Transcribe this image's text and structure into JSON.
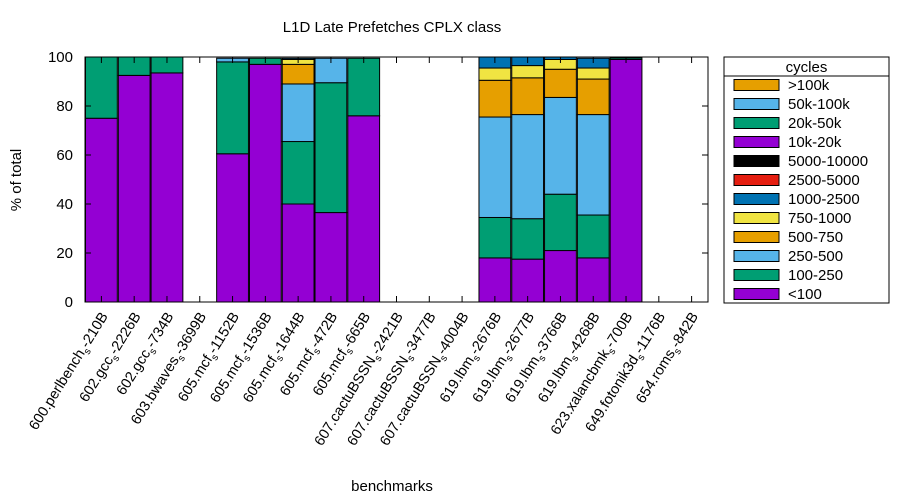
{
  "chart_data": {
    "type": "bar",
    "stacked": true,
    "title": "L1D Late Prefetches CPLX class",
    "xlabel": "benchmarks",
    "ylabel": "% of total",
    "ylim": [
      0,
      100
    ],
    "yticks": [
      0,
      20,
      40,
      60,
      80,
      100
    ],
    "grid": false,
    "legend": {
      "title": "cycles",
      "placement": "right"
    },
    "categories": [
      {
        "base": "600.perlbench",
        "sub": "s",
        "suffix": "-210B"
      },
      {
        "base": "602.gcc",
        "sub": "s",
        "suffix": "-2226B"
      },
      {
        "base": "602.gcc",
        "sub": "s",
        "suffix": "-734B"
      },
      {
        "base": "603.bwaves",
        "sub": "s",
        "suffix": "-3699B"
      },
      {
        "base": "605.mcf",
        "sub": "s",
        "suffix": "-1152B"
      },
      {
        "base": "605.mcf",
        "sub": "s",
        "suffix": "-1536B"
      },
      {
        "base": "605.mcf",
        "sub": "s",
        "suffix": "-1644B"
      },
      {
        "base": "605.mcf",
        "sub": "s",
        "suffix": "-472B"
      },
      {
        "base": "605.mcf",
        "sub": "s",
        "suffix": "-665B"
      },
      {
        "base": "607.cactuBSSN",
        "sub": "s",
        "suffix": "-2421B"
      },
      {
        "base": "607.cactuBSSN",
        "sub": "s",
        "suffix": "-3477B"
      },
      {
        "base": "607.cactuBSSN",
        "sub": "s",
        "suffix": "-4004B"
      },
      {
        "base": "619.lbm",
        "sub": "s",
        "suffix": "-2676B"
      },
      {
        "base": "619.lbm",
        "sub": "s",
        "suffix": "-2677B"
      },
      {
        "base": "619.lbm",
        "sub": "s",
        "suffix": "-3766B"
      },
      {
        "base": "619.lbm",
        "sub": "s",
        "suffix": "-4268B"
      },
      {
        "base": "623.xalancbmk",
        "sub": "s",
        "suffix": "-700B"
      },
      {
        "base": "649.fotonik3d",
        "sub": "s",
        "suffix": "-1176B"
      },
      {
        "base": "654.roms",
        "sub": "s",
        "suffix": "-842B"
      }
    ],
    "series": [
      {
        "name": "<100",
        "color": "#9400d3",
        "values": [
          75,
          92.5,
          93.5,
          0,
          60.5,
          97,
          40,
          36.5,
          76,
          0,
          0,
          0,
          18,
          17.5,
          21,
          18,
          99,
          0,
          0
        ]
      },
      {
        "name": "100-250",
        "color": "#009e73",
        "values": [
          25,
          7.5,
          6.5,
          0,
          37.5,
          2.5,
          25.5,
          53,
          23.5,
          0,
          0,
          0,
          16.5,
          16.5,
          23,
          17.5,
          0.6,
          0,
          0
        ]
      },
      {
        "name": "250-500",
        "color": "#56b4e9",
        "values": [
          0,
          0,
          0,
          0,
          1.5,
          0,
          23.5,
          10,
          0,
          0,
          0,
          0,
          41,
          42.5,
          39.5,
          41,
          0,
          0,
          0
        ]
      },
      {
        "name": "500-750",
        "color": "#e69f00",
        "values": [
          0,
          0,
          0,
          0,
          0,
          0,
          8,
          0,
          0,
          0,
          0,
          0,
          15,
          15,
          11.5,
          14.5,
          0,
          0,
          0
        ]
      },
      {
        "name": "750-1000",
        "color": "#f0e442",
        "values": [
          0,
          0,
          0,
          0,
          0,
          0,
          2,
          0,
          0,
          0,
          0,
          0,
          5,
          5,
          4,
          4.5,
          0,
          0,
          0
        ]
      },
      {
        "name": "1000-2500",
        "color": "#0072b2",
        "values": [
          0,
          0,
          0,
          0,
          0,
          0,
          0.5,
          0,
          0,
          0,
          0,
          0,
          4.5,
          3.5,
          1,
          4,
          0,
          0,
          0
        ]
      },
      {
        "name": "2500-5000",
        "color": "#e51e10",
        "values": [
          0,
          0,
          0,
          0,
          0,
          0,
          0,
          0,
          0,
          0,
          0,
          0,
          0,
          0,
          0,
          0,
          0,
          0,
          0
        ]
      },
      {
        "name": "5000-10000",
        "color": "#000000",
        "values": [
          0,
          0,
          0,
          0,
          0,
          0,
          0,
          0,
          0,
          0,
          0,
          0,
          0,
          0,
          0,
          0,
          0,
          0,
          0
        ]
      },
      {
        "name": "10k-20k",
        "color": "#9400d3",
        "values": [
          0,
          0,
          0,
          0,
          0,
          0,
          0,
          0,
          0,
          0,
          0,
          0,
          0,
          0,
          0,
          0,
          0,
          0,
          0
        ]
      },
      {
        "name": "20k-50k",
        "color": "#009e73",
        "values": [
          0,
          0,
          0,
          0,
          0,
          0,
          0,
          0,
          0,
          0,
          0,
          0,
          0,
          0,
          0,
          0,
          0,
          0,
          0
        ]
      },
      {
        "name": "50k-100k",
        "color": "#56b4e9",
        "values": [
          0,
          0,
          0,
          0,
          0,
          0,
          0,
          0,
          0,
          0,
          0,
          0,
          0,
          0,
          0,
          0,
          0,
          0,
          0
        ]
      },
      {
        "name": ">100k",
        "color": "#e69f00",
        "values": [
          0,
          0,
          0,
          0,
          0,
          0,
          0,
          0,
          0,
          0,
          0,
          0,
          0,
          0,
          0,
          0,
          0,
          0,
          0
        ]
      }
    ]
  }
}
